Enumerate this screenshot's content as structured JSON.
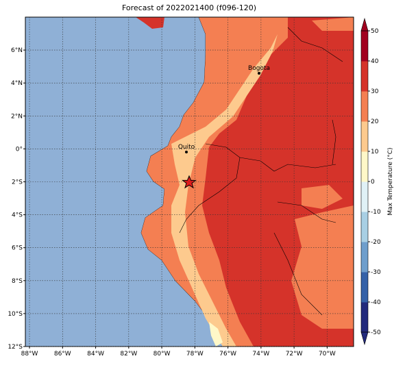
{
  "chart_data": {
    "type": "map",
    "title": "Forecast of 2022021400 (f096-120)",
    "xlim": [
      -88.25,
      -68.4
    ],
    "ylim": [
      -12,
      8
    ],
    "xticks": [
      {
        "value": -88,
        "label": "88°W"
      },
      {
        "value": -86,
        "label": "86°W"
      },
      {
        "value": -84,
        "label": "84°W"
      },
      {
        "value": -82,
        "label": "82°W"
      },
      {
        "value": -80,
        "label": "80°W"
      },
      {
        "value": -78,
        "label": "78°W"
      },
      {
        "value": -76,
        "label": "76°W"
      },
      {
        "value": -74,
        "label": "74°W"
      },
      {
        "value": -72,
        "label": "72°W"
      },
      {
        "value": -70,
        "label": "70°W"
      }
    ],
    "yticks": [
      {
        "value": -12,
        "label": "12°S"
      },
      {
        "value": -10,
        "label": "10°S"
      },
      {
        "value": -8,
        "label": "8°S"
      },
      {
        "value": -6,
        "label": "6°S"
      },
      {
        "value": -4,
        "label": "4°S"
      },
      {
        "value": -2,
        "label": "2°S"
      },
      {
        "value": 0,
        "label": "0°"
      },
      {
        "value": 2,
        "label": "2°N"
      },
      {
        "value": 4,
        "label": "4°N"
      },
      {
        "value": 6,
        "label": "6°N"
      }
    ],
    "grid": true,
    "cities": [
      "Bogota",
      "Quito"
    ],
    "colorbar": {
      "label": "Max Temperature (°C)",
      "ticks": [
        -50,
        -40,
        -30,
        -20,
        -10,
        0,
        10,
        20,
        30,
        40,
        50
      ],
      "colors": [
        "#222a7c",
        "#3562a8",
        "#6e9ecc",
        "#a8cfe4",
        "#e0f1f6",
        "#fff8c8",
        "#fdca8e",
        "#f47f52",
        "#d5332a",
        "#a1001f"
      ]
    }
  }
}
